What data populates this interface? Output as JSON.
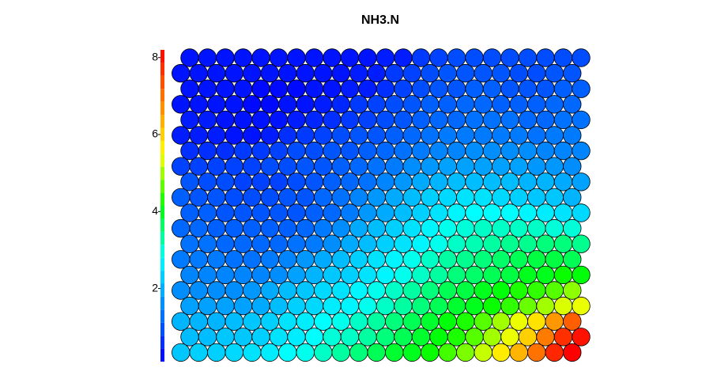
{
  "chart_data": {
    "type": "heatmap",
    "title": "NH3.N",
    "zlim": [
      0.1,
      8.2
    ],
    "zticks": [
      2,
      4,
      6,
      8
    ],
    "colors": [
      "#0000ff",
      "#0080ff",
      "#00ffff",
      "#00ff00",
      "#ffff00",
      "#ff8000",
      "#ff0000"
    ],
    "values": [
      [
        0.3,
        0.3,
        0.3,
        0.3,
        0.3,
        0.3,
        0.3,
        0.3,
        0.3,
        0.3,
        0.3,
        0.4,
        0.4,
        0.7,
        0.8,
        0.9,
        0.9,
        0.9,
        0.9,
        0.9,
        0.9,
        0.9,
        0.9
      ],
      [
        0.3,
        0.3,
        0.3,
        0.3,
        0.3,
        0.3,
        0.3,
        0.3,
        0.3,
        0.3,
        0.4,
        0.4,
        0.7,
        0.8,
        0.9,
        1.0,
        1.0,
        1.0,
        1.0,
        0.9,
        0.9,
        1.0,
        1.0
      ],
      [
        0.3,
        0.3,
        0.3,
        0.3,
        0.2,
        0.2,
        0.2,
        0.3,
        0.3,
        0.4,
        0.4,
        0.6,
        0.8,
        0.9,
        1.0,
        1.0,
        1.1,
        1.1,
        1.0,
        1.0,
        1.0,
        1.1,
        1.1
      ],
      [
        0.3,
        0.3,
        0.3,
        0.3,
        0.2,
        0.2,
        0.3,
        0.3,
        0.4,
        0.5,
        0.7,
        0.8,
        0.9,
        1.0,
        1.1,
        1.1,
        1.2,
        1.2,
        1.1,
        1.1,
        1.1,
        1.2,
        1.2
      ],
      [
        0.4,
        0.4,
        0.3,
        0.3,
        0.3,
        0.3,
        0.4,
        0.5,
        0.6,
        0.7,
        0.8,
        0.9,
        1.0,
        1.1,
        1.2,
        1.2,
        1.3,
        1.3,
        1.3,
        1.2,
        1.2,
        1.3,
        1.3
      ],
      [
        0.4,
        0.4,
        0.4,
        0.3,
        0.3,
        0.4,
        0.6,
        0.7,
        0.8,
        0.9,
        1.0,
        1.0,
        1.1,
        1.2,
        1.3,
        1.4,
        1.4,
        1.4,
        1.4,
        1.4,
        1.3,
        1.4,
        1.4
      ],
      [
        0.6,
        0.6,
        0.6,
        0.7,
        0.7,
        0.8,
        0.9,
        0.9,
        1.0,
        1.0,
        1.1,
        1.2,
        1.3,
        1.4,
        1.5,
        1.5,
        1.6,
        1.6,
        1.6,
        1.6,
        1.5,
        1.5,
        1.5
      ],
      [
        0.8,
        0.8,
        0.8,
        0.8,
        0.8,
        0.9,
        0.9,
        1.0,
        1.0,
        1.1,
        1.2,
        1.3,
        1.4,
        1.6,
        1.7,
        1.8,
        1.8,
        1.8,
        1.8,
        1.8,
        1.7,
        1.7,
        1.6
      ],
      [
        1.0,
        0.9,
        0.9,
        0.8,
        0.8,
        0.8,
        0.9,
        1.0,
        1.1,
        1.2,
        1.3,
        1.5,
        1.7,
        1.9,
        2.0,
        2.1,
        2.1,
        2.1,
        2.1,
        2.0,
        2.0,
        1.9,
        1.8
      ],
      [
        1.1,
        1.0,
        1.0,
        0.9,
        0.9,
        0.9,
        1.0,
        1.0,
        1.2,
        1.3,
        1.5,
        1.7,
        1.9,
        2.1,
        2.3,
        2.4,
        2.5,
        2.5,
        2.4,
        2.3,
        2.2,
        2.2,
        2.0
      ],
      [
        1.1,
        1.1,
        1.0,
        1.0,
        1.0,
        1.0,
        1.0,
        1.1,
        1.2,
        1.4,
        1.7,
        1.9,
        2.1,
        2.3,
        2.5,
        2.7,
        2.8,
        2.8,
        2.8,
        2.7,
        2.6,
        2.5,
        2.4
      ],
      [
        1.2,
        1.2,
        1.1,
        1.1,
        1.1,
        1.1,
        1.1,
        1.2,
        1.4,
        1.6,
        1.9,
        2.1,
        2.3,
        2.5,
        2.7,
        2.9,
        3.0,
        3.1,
        3.1,
        3.1,
        3.1,
        3.0,
        3.0
      ],
      [
        1.3,
        1.3,
        1.2,
        1.2,
        1.2,
        1.2,
        1.3,
        1.4,
        1.6,
        1.9,
        2.1,
        2.3,
        2.5,
        2.7,
        2.9,
        3.1,
        3.2,
        3.3,
        3.4,
        3.4,
        3.5,
        3.5,
        3.4
      ],
      [
        1.4,
        1.4,
        1.4,
        1.3,
        1.3,
        1.4,
        1.5,
        1.7,
        1.9,
        2.1,
        2.3,
        2.5,
        2.7,
        2.9,
        3.1,
        3.3,
        3.4,
        3.5,
        3.6,
        3.7,
        3.8,
        3.8,
        3.7
      ],
      [
        1.5,
        1.5,
        1.5,
        1.5,
        1.5,
        1.6,
        1.8,
        2.0,
        2.2,
        2.3,
        2.5,
        2.7,
        2.9,
        3.1,
        3.3,
        3.5,
        3.6,
        3.7,
        3.8,
        4.0,
        4.0,
        4.2,
        4.1
      ],
      [
        1.6,
        1.6,
        1.6,
        1.6,
        1.7,
        1.9,
        2.1,
        2.2,
        2.4,
        2.5,
        2.7,
        2.9,
        3.1,
        3.3,
        3.5,
        3.7,
        3.8,
        4.0,
        4.1,
        4.3,
        4.4,
        4.6,
        4.9
      ],
      [
        1.8,
        1.8,
        1.8,
        1.8,
        1.9,
        2.1,
        2.3,
        2.4,
        2.6,
        2.7,
        2.9,
        3.1,
        3.3,
        3.5,
        3.7,
        3.9,
        4.0,
        4.2,
        4.4,
        4.7,
        5.0,
        5.3,
        5.4
      ],
      [
        2.0,
        2.0,
        2.0,
        2.1,
        2.2,
        2.3,
        2.5,
        2.6,
        2.8,
        2.9,
        3.1,
        3.3,
        3.5,
        3.7,
        3.9,
        4.1,
        4.3,
        4.6,
        5.0,
        5.4,
        5.8,
        6.6,
        7.2
      ],
      [
        2.1,
        2.1,
        2.2,
        2.2,
        2.3,
        2.5,
        2.6,
        2.8,
        3.0,
        3.1,
        3.3,
        3.5,
        3.7,
        3.9,
        4.1,
        4.3,
        4.6,
        5.0,
        5.4,
        6.0,
        6.9,
        7.7,
        8.0
      ],
      [
        2.2,
        2.3,
        2.3,
        2.4,
        2.5,
        2.6,
        2.8,
        2.9,
        3.1,
        3.3,
        3.5,
        3.7,
        3.9,
        4.0,
        4.2,
        4.5,
        4.8,
        5.2,
        5.7,
        6.3,
        7.0,
        7.8,
        8.2
      ]
    ]
  }
}
